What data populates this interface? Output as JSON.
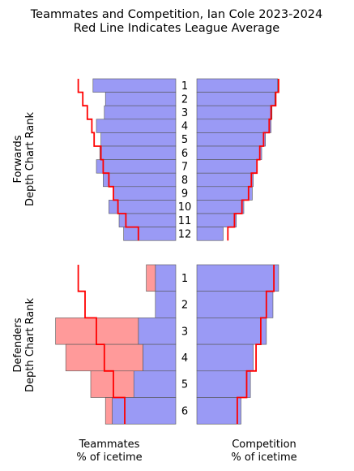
{
  "chart_data": {
    "type": "bar",
    "title_line1": "Teammates and Competition, Ian Cole 2023-2024",
    "title_line2": "Red Line Indicates League Average",
    "left_xlabel_line1": "Teammates",
    "left_xlabel_line2": "% of icetime",
    "right_xlabel_line1": "Competition",
    "right_xlabel_line2": "% of icetime",
    "colors": {
      "blue_bar": "#9a9af5",
      "red_bar": "#ff9a9a",
      "league_line": "#ff0000",
      "bar_edge": "#555555"
    },
    "forwards": {
      "ylabel_line1": "Forwards",
      "ylabel_line2": "Depth Chart Rank",
      "ranks": [
        "1",
        "2",
        "3",
        "4",
        "5",
        "6",
        "7",
        "8",
        "9",
        "10",
        "11",
        "12"
      ],
      "teammates_blue": [
        0.73,
        0.62,
        0.63,
        0.7,
        0.66,
        0.67,
        0.7,
        0.64,
        0.55,
        0.59,
        0.5,
        0.46
      ],
      "teammates_league": [
        0.86,
        0.82,
        0.78,
        0.74,
        0.72,
        0.66,
        0.64,
        0.59,
        0.55,
        0.51,
        0.44,
        0.33
      ],
      "competition_blue": [
        0.86,
        0.83,
        0.8,
        0.79,
        0.73,
        0.69,
        0.64,
        0.6,
        0.59,
        0.5,
        0.42,
        0.28
      ],
      "competition_league": [
        0.87,
        0.84,
        0.79,
        0.77,
        0.71,
        0.67,
        0.64,
        0.58,
        0.55,
        0.48,
        0.4,
        0.33
      ]
    },
    "defenders": {
      "ylabel_line1": "Defenders",
      "ylabel_line2": "Depth Chart Rank",
      "ranks": [
        "1",
        "2",
        "3",
        "4",
        "5",
        "6"
      ],
      "teammates_blue": [
        0.18,
        0.18,
        0.33,
        0.29,
        0.37,
        0.56
      ],
      "teammates_red": [
        0.08,
        0.0,
        0.73,
        0.68,
        0.38,
        0.06
      ],
      "teammates_league": [
        0.86,
        0.8,
        0.7,
        0.63,
        0.55,
        0.45
      ],
      "competition_blue": [
        0.87,
        0.81,
        0.74,
        0.6,
        0.57,
        0.47
      ],
      "competition_league": [
        0.82,
        0.74,
        0.68,
        0.63,
        0.53,
        0.43
      ]
    }
  }
}
